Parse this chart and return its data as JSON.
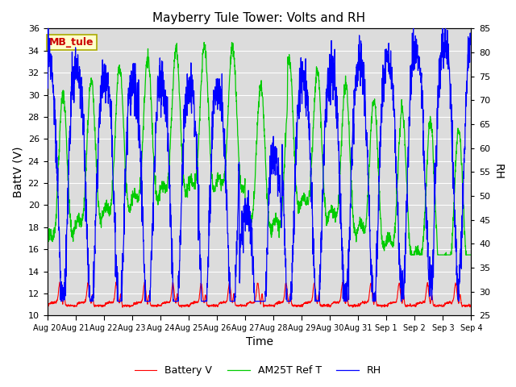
{
  "title": "Mayberry Tule Tower: Volts and RH",
  "xlabel": "Time",
  "ylabel_left": "BattV (V)",
  "ylabel_right": "RH",
  "ylim_left": [
    10,
    36
  ],
  "ylim_right": [
    25,
    85
  ],
  "yticks_left": [
    10,
    12,
    14,
    16,
    18,
    20,
    22,
    24,
    26,
    28,
    30,
    32,
    34,
    36
  ],
  "yticks_right": [
    25,
    30,
    35,
    40,
    45,
    50,
    55,
    60,
    65,
    70,
    75,
    80,
    85
  ],
  "xtick_labels": [
    "Aug 20",
    "Aug 21",
    "Aug 22",
    "Aug 23",
    "Aug 24",
    "Aug 25",
    "Aug 26",
    "Aug 27",
    "Aug 28",
    "Aug 29",
    "Aug 30",
    "Aug 31",
    "Sep 1",
    "Sep 2",
    "Sep 3",
    "Sep 4"
  ],
  "legend_labels": [
    "Battery V",
    "AM25T Ref T",
    "RH"
  ],
  "line_colors_list": [
    "#ff0000",
    "#00cc00",
    "#0000ff"
  ],
  "annotation_text": "MB_tule",
  "annotation_fg": "#cc0000",
  "annotation_bg": "#ffffcc",
  "annotation_border": "#aaaa00",
  "background_color": "#ffffff",
  "plot_bg": "#dcdcdc",
  "grid_color": "#ffffff",
  "title_fontsize": 11,
  "label_fontsize": 10,
  "tick_fontsize": 8
}
